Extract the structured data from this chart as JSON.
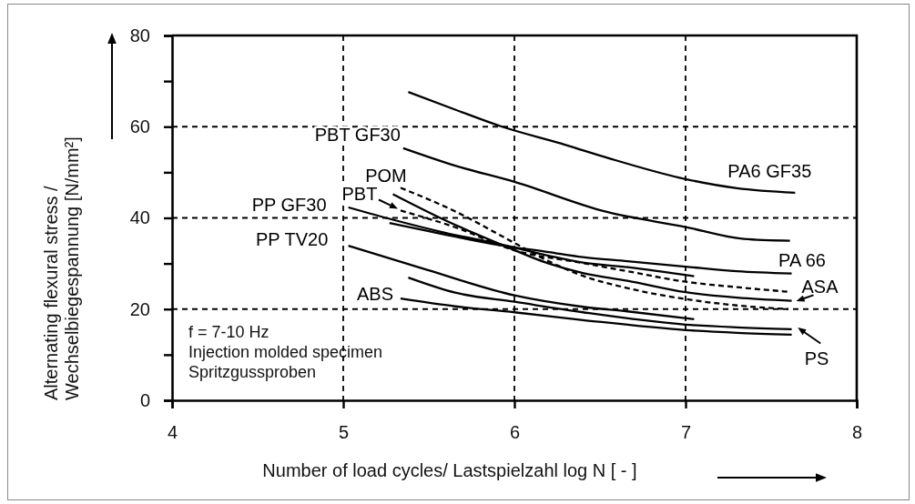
{
  "chart_data": {
    "type": "line",
    "xlabel": "Number of load cycles/ Lastspielzahl log N [ - ]",
    "ylabel": "Alternating flexural stress /\nWechselbiegespannung [N/mm²]",
    "xlim": [
      4,
      8
    ],
    "xticks": [
      4,
      5,
      6,
      7,
      8
    ],
    "ylim": [
      0,
      80
    ],
    "yticks": [
      0,
      {
        "value": 10,
        "label": null
      },
      20,
      {
        "value": 30,
        "label": null
      },
      40,
      {
        "value": 50,
        "label": null
      },
      60,
      {
        "value": 70,
        "label": null
      },
      80
    ],
    "grid": true,
    "series": [
      {
        "name": "PA6 GF35",
        "color": "#000000",
        "x": [
          5.38,
          5.65,
          5.92,
          6.3,
          6.55,
          7.0,
          7.3,
          7.64
        ],
        "values": [
          67.6,
          63.8,
          60.1,
          56.0,
          53.1,
          48.5,
          46.5,
          45.5
        ]
      },
      {
        "name": "PBT GF30",
        "color": "#000000",
        "x": [
          5.35,
          5.65,
          6.0,
          6.54,
          7.0,
          7.34,
          7.61
        ],
        "values": [
          55.3,
          51.5,
          47.9,
          41.3,
          38.0,
          35.4,
          35.0
        ]
      },
      {
        "name": "PBT",
        "color": "#000000",
        "line_style": "dashed",
        "x": [
          5.335,
          5.65,
          6.0,
          6.4,
          6.66,
          7.0,
          7.3,
          7.6
        ],
        "values": [
          41.6,
          38.0,
          32.9,
          30.1,
          28.3,
          26.0,
          24.8,
          23.8
        ]
      },
      {
        "name": "POM",
        "color": "#000000",
        "line_style": "dashed",
        "x": [
          5.335,
          5.65,
          6.0,
          6.2,
          6.4,
          6.66,
          7.0,
          7.3,
          7.6
        ],
        "values": [
          46.6,
          41.5,
          34.5,
          30.5,
          27.3,
          24.6,
          22.2,
          20.8,
          20.0
        ]
      },
      {
        "name": "PP GF30",
        "color": "#000000",
        "x": [
          5.03,
          5.3,
          5.6,
          5.92,
          6.2,
          6.4,
          6.66,
          7.05
        ],
        "values": [
          42.3,
          39.5,
          36.7,
          34.2,
          31.7,
          30.2,
          29.2,
          27.2
        ]
      },
      {
        "name": "PP TV20",
        "color": "#000000",
        "x": [
          5.03,
          5.49,
          6.0,
          6.4,
          6.66,
          7.05
        ],
        "values": [
          33.9,
          28.6,
          23.0,
          20.5,
          19.5,
          17.8
        ]
      },
      {
        "name": "ABS",
        "color": "#000000",
        "x": [
          5.335,
          5.654,
          6.0,
          6.4,
          7.0,
          7.3,
          7.62
        ],
        "values": [
          22.3,
          20.6,
          19.3,
          17.6,
          15.4,
          14.8,
          14.4
        ]
      },
      {
        "name": "PA 66",
        "color": "#000000",
        "x": [
          5.27,
          5.6,
          5.92,
          6.2,
          6.4,
          6.66,
          7.0,
          7.3,
          7.62
        ],
        "values": [
          38.9,
          36.3,
          34.0,
          32.5,
          31.4,
          30.5,
          29.3,
          28.3,
          27.8
        ]
      },
      {
        "name": "ASA",
        "color": "#000000",
        "x": [
          5.29,
          5.6,
          5.92,
          6.2,
          6.4,
          6.66,
          7.0,
          7.3,
          7.62
        ],
        "values": [
          45.2,
          39.4,
          34.2,
          30.0,
          27.9,
          26.2,
          23.7,
          22.5,
          21.8
        ]
      },
      {
        "name": "PS",
        "color": "#000000",
        "x": [
          5.38,
          5.654,
          6.0,
          6.4,
          7.0,
          7.3,
          7.62
        ],
        "values": [
          26.9,
          23.6,
          21.6,
          19.3,
          16.6,
          16.0,
          15.6
        ]
      }
    ],
    "annotations": [
      "f = 7-10 Hz",
      "Injection molded specimen",
      "Spritzgussproben"
    ]
  }
}
